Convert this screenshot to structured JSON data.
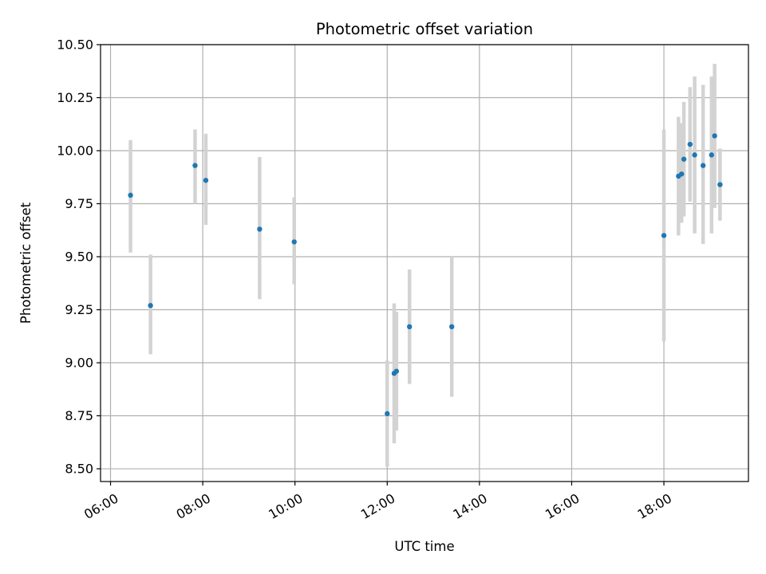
{
  "chart_data": {
    "type": "scatter",
    "title": "Photometric offset variation",
    "xlabel": "UTC time",
    "ylabel": "Photometric offset",
    "xlim": [
      "05:47",
      "19:50"
    ],
    "ylim": [
      8.44,
      10.5
    ],
    "x_ticks": [
      "06:00",
      "08:00",
      "10:00",
      "12:00",
      "14:00",
      "16:00",
      "18:00"
    ],
    "y_ticks": [
      "8.50",
      "8.75",
      "9.00",
      "9.25",
      "9.50",
      "9.75",
      "10.00",
      "10.25",
      "10.50"
    ],
    "grid": true,
    "legend": "none",
    "colors": {
      "marker": "#1f77b4",
      "errorbar": "#d3d3d3",
      "grid": "#b0b0b0"
    },
    "series": [
      {
        "points": [
          {
            "x": "06:26",
            "y": 9.79,
            "lo": 9.52,
            "hi": 10.05
          },
          {
            "x": "06:52",
            "y": 9.27,
            "lo": 9.04,
            "hi": 9.51
          },
          {
            "x": "07:50",
            "y": 9.93,
            "lo": 9.75,
            "hi": 10.1
          },
          {
            "x": "08:04",
            "y": 9.86,
            "lo": 9.65,
            "hi": 10.08
          },
          {
            "x": "09:14",
            "y": 9.63,
            "lo": 9.3,
            "hi": 9.97
          },
          {
            "x": "09:59",
            "y": 9.57,
            "lo": 9.37,
            "hi": 9.78
          },
          {
            "x": "12:00",
            "y": 8.76,
            "lo": 8.51,
            "hi": 9.01
          },
          {
            "x": "12:09",
            "y": 8.95,
            "lo": 8.62,
            "hi": 9.28
          },
          {
            "x": "12:12",
            "y": 8.96,
            "lo": 8.68,
            "hi": 9.24
          },
          {
            "x": "12:29",
            "y": 9.17,
            "lo": 8.9,
            "hi": 9.44
          },
          {
            "x": "13:24",
            "y": 9.17,
            "lo": 8.84,
            "hi": 9.5
          },
          {
            "x": "18:00",
            "y": 9.6,
            "lo": 9.1,
            "hi": 10.1
          },
          {
            "x": "18:19",
            "y": 9.88,
            "lo": 9.6,
            "hi": 10.16
          },
          {
            "x": "18:23",
            "y": 9.89,
            "lo": 9.66,
            "hi": 10.13
          },
          {
            "x": "18:26",
            "y": 9.96,
            "lo": 9.69,
            "hi": 10.23
          },
          {
            "x": "18:34",
            "y": 10.03,
            "lo": 9.76,
            "hi": 10.3
          },
          {
            "x": "18:40",
            "y": 9.98,
            "lo": 9.61,
            "hi": 10.35
          },
          {
            "x": "18:51",
            "y": 9.93,
            "lo": 9.56,
            "hi": 10.31
          },
          {
            "x": "19:02",
            "y": 9.98,
            "lo": 9.61,
            "hi": 10.35
          },
          {
            "x": "19:06",
            "y": 10.07,
            "lo": 9.73,
            "hi": 10.41
          },
          {
            "x": "19:13",
            "y": 9.84,
            "lo": 9.67,
            "hi": 10.01
          }
        ]
      }
    ]
  }
}
